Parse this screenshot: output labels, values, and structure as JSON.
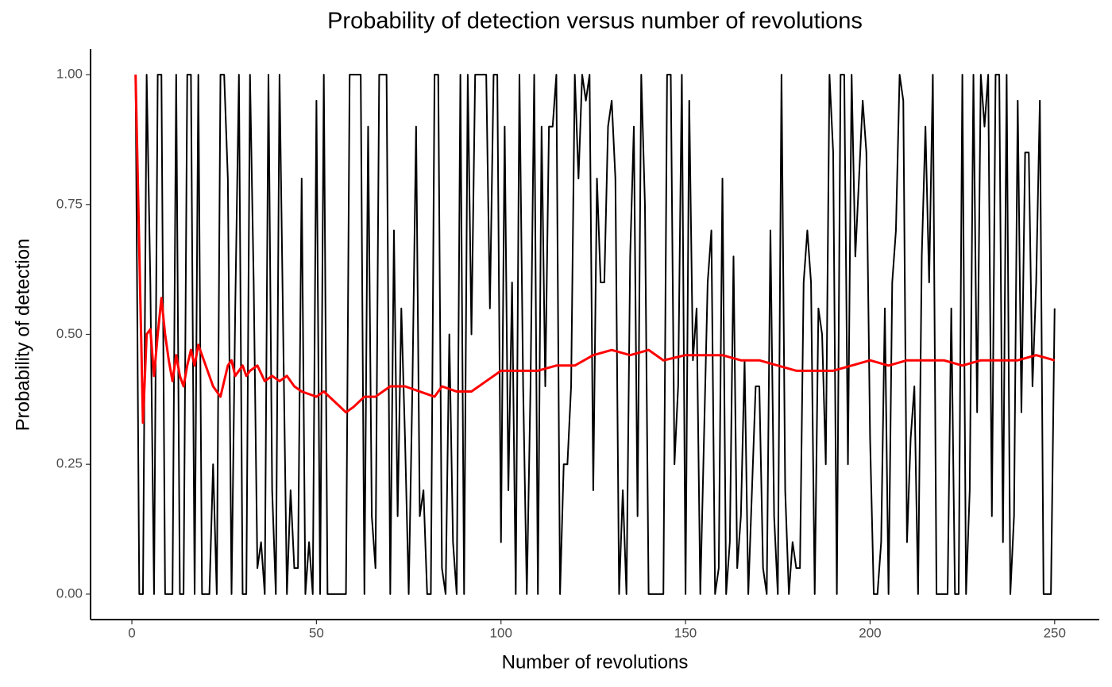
{
  "chart_data": {
    "type": "line",
    "title": "Probability of detection versus number of revolutions",
    "x_label": "Number of revolutions",
    "y_label": "Probability of detection",
    "xlim": [
      -11.2,
      262.1
    ],
    "ylim": [
      -0.049,
      1.049
    ],
    "xticks": [
      0,
      50,
      100,
      150,
      200,
      250
    ],
    "yticks": [
      {
        "value": 0,
        "label": "0.00"
      },
      {
        "value": 0.25,
        "label": "0.25"
      },
      {
        "value": 0.5,
        "label": "0.50"
      },
      {
        "value": 0.75,
        "label": "0.75"
      },
      {
        "value": 1,
        "label": "1.00"
      }
    ],
    "grid": false,
    "series": [
      {
        "color": "#000000",
        "x": [
          1,
          2,
          3,
          4,
          5,
          6,
          7,
          8,
          9,
          10,
          11,
          12,
          13,
          14,
          15,
          16,
          17,
          18,
          19,
          20,
          21,
          22,
          23,
          24,
          25,
          26,
          27,
          28,
          29,
          30,
          31,
          32,
          33,
          34,
          35,
          36,
          37,
          38,
          39,
          40,
          41,
          42,
          43,
          44,
          45,
          46,
          47,
          48,
          49,
          50,
          51,
          52,
          53,
          54,
          55,
          56,
          57,
          58,
          59,
          60,
          61,
          62,
          63,
          64,
          65,
          66,
          67,
          68,
          69,
          70,
          71,
          72,
          73,
          74,
          75,
          76,
          77,
          78,
          79,
          80,
          81,
          82,
          83,
          84,
          85,
          86,
          87,
          88,
          89,
          90,
          91,
          92,
          93,
          94,
          95,
          96,
          97,
          98,
          99,
          100,
          101,
          102,
          103,
          104,
          105,
          106,
          107,
          108,
          109,
          110,
          111,
          112,
          113,
          114,
          115,
          116,
          117,
          118,
          119,
          120,
          121,
          122,
          123,
          124,
          125,
          126,
          127,
          128,
          129,
          130,
          131,
          132,
          133,
          134,
          135,
          136,
          137,
          138,
          139,
          140,
          141,
          142,
          143,
          144,
          145,
          146,
          147,
          148,
          149,
          150,
          151,
          152,
          153,
          154,
          155,
          156,
          157,
          158,
          159,
          160,
          161,
          162,
          163,
          164,
          165,
          166,
          167,
          168,
          169,
          170,
          171,
          172,
          173,
          174,
          175,
          176,
          177,
          178,
          179,
          180,
          181,
          182,
          183,
          184,
          185,
          186,
          187,
          188,
          189,
          190,
          191,
          192,
          193,
          194,
          195,
          196,
          197,
          198,
          199,
          200,
          201,
          202,
          203,
          204,
          205,
          206,
          207,
          208,
          209,
          210,
          211,
          212,
          213,
          214,
          215,
          216,
          217,
          218,
          219,
          220,
          221,
          222,
          223,
          224,
          225,
          226,
          227,
          228,
          229,
          230,
          231,
          232,
          233,
          234,
          235,
          236,
          237,
          238,
          239,
          240,
          241,
          242,
          243,
          244,
          245,
          246,
          247,
          248,
          249,
          250
        ],
        "values": [
          1,
          0,
          0,
          1,
          0.6,
          0,
          1,
          1,
          0,
          0,
          0,
          1,
          0,
          0,
          1,
          1,
          0,
          1,
          0,
          0,
          0,
          0.25,
          0,
          1,
          1,
          0.8,
          0,
          0.55,
          1,
          0,
          0,
          1,
          0.6,
          0.05,
          0.1,
          0,
          1,
          0.2,
          0,
          1,
          0.5,
          0,
          0.2,
          0.05,
          0.05,
          0.8,
          0,
          0.1,
          0,
          0.95,
          0,
          1,
          0,
          0,
          0,
          0,
          0,
          0,
          1,
          1,
          1,
          1,
          0,
          0.9,
          0.15,
          0.05,
          1,
          1,
          1,
          0,
          0.7,
          0.15,
          0.55,
          0.3,
          0,
          0.4,
          0.9,
          0.15,
          0.2,
          0,
          0,
          1,
          1,
          0.05,
          0,
          0.5,
          0.1,
          0,
          1,
          0,
          1,
          0.5,
          1,
          1,
          1,
          1,
          0.55,
          1,
          1,
          0.1,
          0.9,
          0.2,
          0.6,
          0,
          1,
          0.4,
          0,
          0.4,
          1,
          0,
          0.9,
          0.4,
          0.9,
          0.9,
          1,
          0,
          0.25,
          0.25,
          0.4,
          1,
          0.8,
          1,
          0.95,
          1,
          0.2,
          0.8,
          0.6,
          0.6,
          0.9,
          0.95,
          0.8,
          0,
          0.2,
          0,
          0.65,
          0.9,
          0.15,
          1,
          0.75,
          0,
          0,
          0,
          0,
          0,
          1,
          1,
          0.25,
          0.4,
          1,
          0,
          0.95,
          0.45,
          0.55,
          0,
          0.3,
          0.6,
          0.7,
          0,
          0.05,
          0.8,
          0,
          0.1,
          0.65,
          0.05,
          0.15,
          0.45,
          0,
          0.2,
          0.4,
          0.4,
          0.05,
          0,
          0.7,
          0.15,
          0,
          1,
          0.2,
          0,
          0.1,
          0.05,
          0.05,
          0.6,
          0.7,
          0.6,
          0,
          0.55,
          0.5,
          0.25,
          1,
          0.85,
          0,
          1,
          1,
          0.25,
          1,
          0.65,
          0.8,
          0.95,
          0.85,
          0.3,
          0,
          0,
          0.1,
          0.55,
          0,
          0.6,
          0.7,
          1,
          0.95,
          0.1,
          0.3,
          0.4,
          0,
          0.65,
          0.9,
          0.6,
          1,
          0,
          0,
          0,
          0,
          0.55,
          0,
          0,
          1,
          0,
          0.2,
          1,
          0.35,
          1,
          0.9,
          1,
          0.15,
          1,
          1,
          0.1,
          1,
          0,
          0.15,
          0.95,
          0.35,
          0.85,
          0.85,
          0.4,
          0.6,
          0.95,
          0,
          0,
          0,
          0.55
        ]
      },
      {
        "color": "#ff0000",
        "x": [
          1,
          3,
          4,
          5,
          6,
          7,
          8,
          9,
          10,
          11,
          12,
          13,
          14,
          15,
          16,
          17,
          18,
          20,
          22,
          24,
          26,
          27,
          28,
          29,
          30,
          31,
          32,
          34,
          36,
          38,
          40,
          42,
          44,
          46,
          50,
          52,
          55,
          58,
          60,
          63,
          66,
          68,
          70,
          74,
          78,
          82,
          84,
          88,
          92,
          96,
          100,
          105,
          110,
          115,
          120,
          125,
          130,
          135,
          140,
          144,
          150,
          155,
          160,
          165,
          170,
          175,
          180,
          185,
          190,
          195,
          200,
          205,
          210,
          215,
          220,
          225,
          230,
          235,
          240,
          245,
          250
        ],
        "values": [
          1,
          0.33,
          0.5,
          0.51,
          0.42,
          0.5,
          0.57,
          0.5,
          0.45,
          0.41,
          0.46,
          0.42,
          0.4,
          0.44,
          0.47,
          0.44,
          0.48,
          0.44,
          0.4,
          0.38,
          0.44,
          0.45,
          0.42,
          0.43,
          0.44,
          0.42,
          0.43,
          0.44,
          0.41,
          0.42,
          0.41,
          0.42,
          0.4,
          0.39,
          0.38,
          0.39,
          0.37,
          0.35,
          0.36,
          0.38,
          0.38,
          0.39,
          0.4,
          0.4,
          0.39,
          0.38,
          0.4,
          0.39,
          0.39,
          0.41,
          0.43,
          0.43,
          0.43,
          0.44,
          0.44,
          0.46,
          0.47,
          0.46,
          0.47,
          0.45,
          0.46,
          0.46,
          0.46,
          0.45,
          0.45,
          0.44,
          0.43,
          0.43,
          0.43,
          0.44,
          0.45,
          0.44,
          0.45,
          0.45,
          0.45,
          0.44,
          0.45,
          0.45,
          0.45,
          0.46,
          0.45
        ]
      }
    ]
  }
}
